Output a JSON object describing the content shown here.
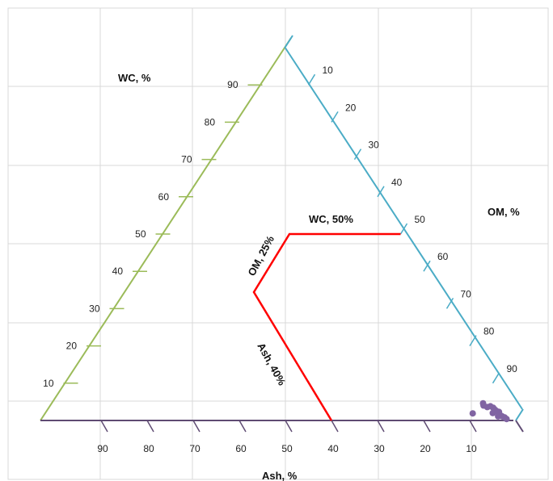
{
  "chart_data": {
    "type": "scatter",
    "subtype": "ternary",
    "title": "",
    "axes": {
      "wc": {
        "label": "WC, %",
        "color": "#9bbb59",
        "ticks": [
          "10",
          "20",
          "30",
          "40",
          "50",
          "60",
          "70",
          "80",
          "90"
        ]
      },
      "om": {
        "label": "OM, %",
        "color": "#4bacc6",
        "ticks": [
          "10",
          "20",
          "30",
          "40",
          "50",
          "60",
          "70",
          "80",
          "90"
        ]
      },
      "ash": {
        "label": "Ash, %",
        "color": "#5f4b73",
        "ticks": [
          "10",
          "20",
          "30",
          "40",
          "50",
          "60",
          "70",
          "80",
          "90"
        ]
      }
    },
    "grid": true,
    "thresholds": {
      "color": "#ff0000",
      "wc_label": "WC, 50%",
      "om_label": "OM, 25%",
      "ash_label": "Ash, 40%",
      "wc_value": 50,
      "om_value": 25,
      "ash_value": 40
    },
    "points_color": "#8064a2",
    "points": [
      {
        "wc": 2,
        "om": 94,
        "ash": 4
      },
      {
        "wc": 4,
        "om": 91,
        "ash": 5
      },
      {
        "wc": 4.6,
        "om": 90.6,
        "ash": 4.8
      },
      {
        "wc": 3.6,
        "om": 92,
        "ash": 4.4
      },
      {
        "wc": 3.8,
        "om": 92.6,
        "ash": 3.6
      },
      {
        "wc": 3.4,
        "om": 93.4,
        "ash": 3.2
      },
      {
        "wc": 2.9,
        "om": 94,
        "ash": 3.1
      },
      {
        "wc": 2.5,
        "om": 94.6,
        "ash": 2.9
      },
      {
        "wc": 2.3,
        "om": 95.2,
        "ash": 2.5
      },
      {
        "wc": 1.7,
        "om": 95.6,
        "ash": 2.7
      },
      {
        "wc": 1.1,
        "om": 95.6,
        "ash": 3.3
      },
      {
        "wc": 1.1,
        "om": 96.5,
        "ash": 2.4
      },
      {
        "wc": 0.8,
        "om": 97.2,
        "ash": 2.0
      },
      {
        "wc": 0.4,
        "om": 97.8,
        "ash": 1.8
      },
      {
        "wc": 1.9,
        "om": 89.7,
        "ash": 8.4
      }
    ]
  }
}
